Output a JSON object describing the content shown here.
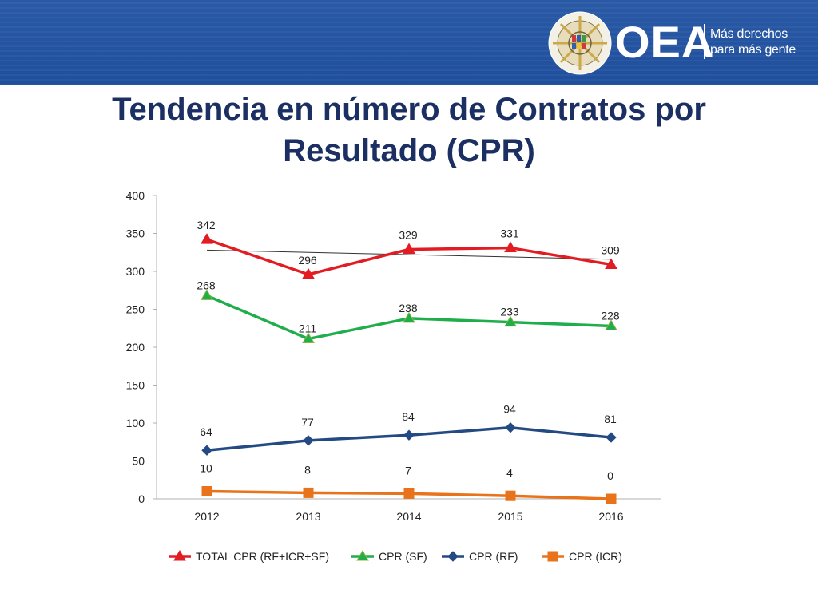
{
  "header": {
    "logo_text": "OEA",
    "tagline_line1": "Más derechos",
    "tagline_line2": "para más gente",
    "seal_text": "ORGANIZACION DE LOS ESTADOS AMERICANOS",
    "brand_color": "#1f4f9c",
    "seal_icon": "oea-seal-icon"
  },
  "slide": {
    "title_line1": "Tendencia en número de Contratos por",
    "title_line2": "Resultado (CPR)"
  },
  "chart_data": {
    "type": "line",
    "title": "",
    "xlabel": "",
    "ylabel": "",
    "categories": [
      "2012",
      "2013",
      "2014",
      "2015",
      "2016"
    ],
    "ylim": [
      0,
      400
    ],
    "yticks": [
      0,
      50,
      100,
      150,
      200,
      250,
      300,
      350,
      400
    ],
    "grid": false,
    "legend_position": "bottom",
    "series": [
      {
        "name": "TOTAL CPR (RF+ICR+SF)",
        "values": [
          342,
          296,
          329,
          331,
          309
        ],
        "color": "#e31b23",
        "marker": "triangle",
        "trendline": {
          "start": 328,
          "end": 316
        }
      },
      {
        "name": "CPR (SF)",
        "values": [
          268,
          211,
          238,
          233,
          228
        ],
        "color": "#1fae4b",
        "marker": "triangle"
      },
      {
        "name": "CPR (RF)",
        "values": [
          64,
          77,
          84,
          94,
          81
        ],
        "color": "#244a83",
        "marker": "diamond"
      },
      {
        "name": "CPR (ICR)",
        "values": [
          10,
          8,
          7,
          4,
          0
        ],
        "color": "#e8731b",
        "marker": "square"
      }
    ]
  }
}
